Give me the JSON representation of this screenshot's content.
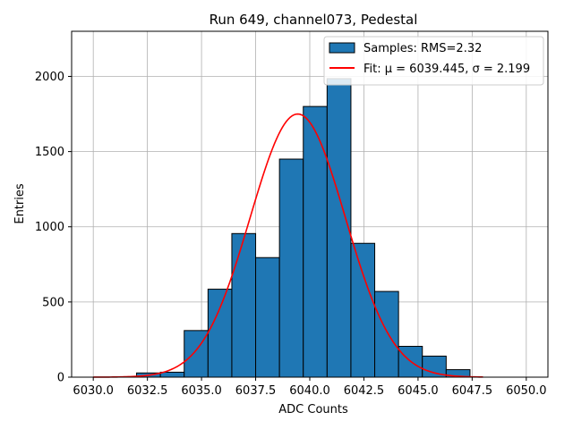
{
  "chart_data": {
    "type": "bar",
    "title": "Run 649, channel073, Pedestal",
    "xlabel": "ADC Counts",
    "ylabel": "Entries",
    "xlim": [
      6029.0,
      6051.0
    ],
    "ylim": [
      0,
      2300
    ],
    "x_ticks": [
      6030.0,
      6032.5,
      6035.0,
      6037.5,
      6040.0,
      6042.5,
      6045.0,
      6047.5,
      6050.0
    ],
    "x_tick_labels": [
      "6030.0",
      "6032.5",
      "6035.0",
      "6037.5",
      "6040.0",
      "6042.5",
      "6045.0",
      "6047.5",
      "6050.0"
    ],
    "y_ticks": [
      0,
      500,
      1000,
      1500,
      2000
    ],
    "y_tick_labels": [
      "0",
      "500",
      "1000",
      "1500",
      "2000"
    ],
    "grid": true,
    "legend_position": "top-right",
    "series": [
      {
        "name": "Samples: RMS=2.32",
        "kind": "histogram",
        "color": "#1f77b4",
        "edge_color": "#000000",
        "bin_edges": [
          6032.0,
          6033.1,
          6034.2,
          6035.3,
          6036.4,
          6037.5,
          6038.6,
          6039.7,
          6040.8,
          6041.9,
          6043.0,
          6044.1,
          6045.2,
          6046.3,
          6047.4
        ],
        "values": [
          28,
          33,
          310,
          585,
          955,
          795,
          1450,
          1800,
          1985,
          890,
          570,
          205,
          140,
          50
        ]
      },
      {
        "name": "Fit: μ = 6039.445, σ = 2.199",
        "kind": "gaussian_fit",
        "color": "#ff0000",
        "mu": 6039.445,
        "sigma": 2.199,
        "amplitude": 1750,
        "x_range": [
          6030.0,
          6048.0
        ]
      }
    ]
  }
}
